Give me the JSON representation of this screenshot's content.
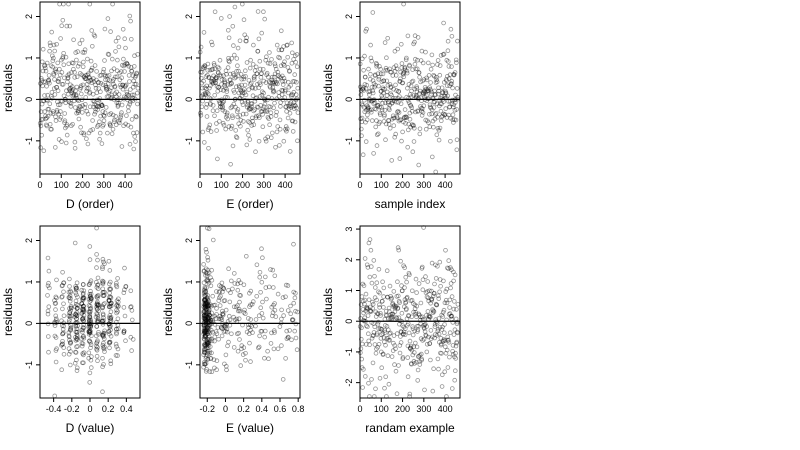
{
  "chart_data": [
    {
      "type": "scatter",
      "xlabel": "D (order)",
      "ylabel": "residuals",
      "xlim": [
        0,
        470
      ],
      "ylim": [
        -1.8,
        2.35
      ],
      "xticks": [
        0,
        100,
        200,
        300,
        400
      ],
      "yticks": [
        -1,
        0,
        1,
        2
      ],
      "zero_line": 0,
      "n": 460,
      "x_kind": "index",
      "seed": 11,
      "resid_kind": "skewed",
      "series": [
        {
          "x": [],
          "y": []
        }
      ]
    },
    {
      "type": "scatter",
      "xlabel": "E (order)",
      "ylabel": "residuals",
      "xlim": [
        0,
        470
      ],
      "ylim": [
        -1.8,
        2.35
      ],
      "xticks": [
        0,
        100,
        200,
        300,
        400
      ],
      "yticks": [
        -1,
        0,
        1,
        2
      ],
      "zero_line": 0,
      "n": 460,
      "x_kind": "index",
      "seed": 23,
      "resid_kind": "skewed",
      "series": [
        {
          "x": [],
          "y": []
        }
      ]
    },
    {
      "type": "scatter",
      "xlabel": "sample index",
      "ylabel": "residuals",
      "xlim": [
        0,
        470
      ],
      "ylim": [
        -1.8,
        2.35
      ],
      "xticks": [
        0,
        100,
        200,
        300,
        400
      ],
      "yticks": [
        -1,
        0,
        1,
        2
      ],
      "zero_line": 0,
      "n": 460,
      "x_kind": "index",
      "seed": 37,
      "resid_kind": "skewed",
      "series": [
        {
          "x": [],
          "y": []
        }
      ]
    },
    {
      "type": "scatter",
      "xlabel": "D (value)",
      "ylabel": "residuals",
      "xlim": [
        -0.55,
        0.55
      ],
      "ylim": [
        -1.8,
        2.35
      ],
      "xticks": [
        -0.4,
        -0.2,
        0.0,
        0.2,
        0.4
      ],
      "ytick_labels": [
        "-1",
        "0",
        "1",
        "2"
      ],
      "yticks": [
        -1,
        0,
        1,
        2
      ],
      "zero_line": 0,
      "n": 460,
      "x_kind": "D",
      "seed": 41,
      "resid_kind": "skewed",
      "series": [
        {
          "x": [],
          "y": []
        }
      ]
    },
    {
      "type": "scatter",
      "xlabel": "E (value)",
      "ylabel": "residuals",
      "xlim": [
        -0.28,
        0.82
      ],
      "ylim": [
        -1.8,
        2.35
      ],
      "xticks": [
        -0.2,
        0.0,
        0.2,
        0.4,
        0.6,
        0.8
      ],
      "yticks": [
        -1,
        0,
        1,
        2
      ],
      "zero_line": 0,
      "n": 460,
      "x_kind": "E",
      "seed": 53,
      "resid_kind": "skewed",
      "series": [
        {
          "x": [],
          "y": []
        }
      ]
    },
    {
      "type": "scatter",
      "xlabel": "randam example",
      "ylabel": "residuals",
      "xlim": [
        0,
        470
      ],
      "ylim": [
        -2.5,
        3.1
      ],
      "xticks": [
        0,
        100,
        200,
        300,
        400
      ],
      "yticks": [
        -2,
        -1,
        0,
        1,
        2,
        3
      ],
      "zero_line": 0,
      "n": 460,
      "x_kind": "index",
      "seed": 67,
      "resid_kind": "normal",
      "series": [
        {
          "x": [],
          "y": []
        }
      ]
    }
  ]
}
